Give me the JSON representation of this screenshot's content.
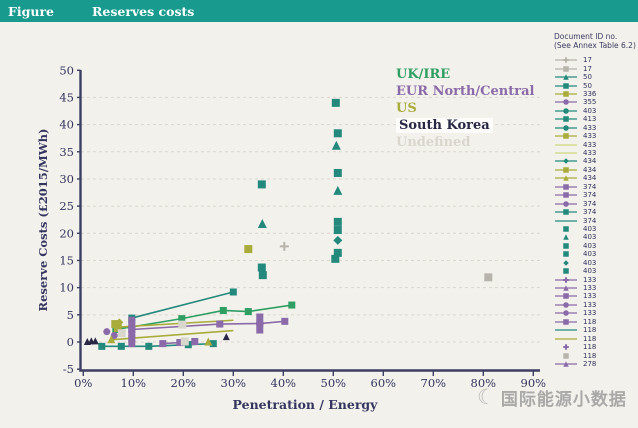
{
  "header": {
    "figure_label": "Figure",
    "title": "Reserves costs"
  },
  "watermark": {
    "icon": "crescent-moon-logo",
    "text": "国际能源小数据"
  },
  "colors": {
    "header_bg": "#189b8e",
    "page_bg": "#f3f1ec",
    "axis": "#3c3e63",
    "tick_text": "#33355e",
    "grid": "#d9d6cb",
    "teal": "#23897c",
    "green": "#2f9e62",
    "olive": "#a9ac3b",
    "light_green": "#cdd97e",
    "purple": "#8a6aa8",
    "gray": "#b6b4ab",
    "light_gray": "#d9d7cd",
    "dark": "#282844"
  },
  "chart_data": {
    "type": "scatter",
    "title": "Reserves costs",
    "xlabel": "Penetration / Energy",
    "ylabel": "Reserve Costs (£2015/MWh)",
    "xlim": [
      0,
      90
    ],
    "ylim": [
      -5,
      50
    ],
    "x_ticks": [
      "0%",
      "10%",
      "20%",
      "30%",
      "40%",
      "50%",
      "60%",
      "70%",
      "80%",
      "90%"
    ],
    "y_ticks": [
      50,
      45,
      40,
      35,
      30,
      25,
      20,
      15,
      10,
      5,
      0,
      -5
    ],
    "grid": "dashed horizontal lines every 5 units from 0 to 45",
    "legend_regions": [
      {
        "label": "UK/IRE",
        "color": "green",
        "highlight": false
      },
      {
        "label": "EUR North/Central",
        "color": "purple",
        "highlight": false
      },
      {
        "label": "US",
        "color": "olive",
        "highlight": false
      },
      {
        "label": "South Korea",
        "color": "dark",
        "highlight": true
      },
      {
        "label": "Undefined",
        "color": "light_gray",
        "highlight": false
      }
    ],
    "doc_legend": {
      "title_line1": "Document ID no.",
      "title_line2": "(See Annex Table 6.2)",
      "entries": [
        {
          "id": "17",
          "color": "gray",
          "marker": "plus",
          "line": true
        },
        {
          "id": "17",
          "color": "gray",
          "marker": "square",
          "line": true
        },
        {
          "id": "50",
          "color": "teal",
          "marker": "triangle",
          "line": true
        },
        {
          "id": "50",
          "color": "teal",
          "marker": "square",
          "line": true
        },
        {
          "id": "336",
          "color": "olive",
          "marker": "square",
          "line": true
        },
        {
          "id": "355",
          "color": "purple",
          "marker": "circle",
          "line": true
        },
        {
          "id": "403",
          "color": "teal",
          "marker": "circle",
          "line": true
        },
        {
          "id": "413",
          "color": "teal",
          "marker": "square",
          "line": true
        },
        {
          "id": "433",
          "color": "teal",
          "marker": "circle",
          "line": true
        },
        {
          "id": "433",
          "color": "olive",
          "marker": "square",
          "line": true
        },
        {
          "id": "433",
          "color": "light_green",
          "marker": "none",
          "line": true
        },
        {
          "id": "433",
          "color": "light_green",
          "marker": "none",
          "line": true
        },
        {
          "id": "434",
          "color": "teal",
          "marker": "diamond",
          "line": true
        },
        {
          "id": "434",
          "color": "olive",
          "marker": "square",
          "line": true
        },
        {
          "id": "434",
          "color": "olive",
          "marker": "triangle",
          "line": true
        },
        {
          "id": "374",
          "color": "purple",
          "marker": "square",
          "line": true
        },
        {
          "id": "374",
          "color": "purple",
          "marker": "square",
          "line": true
        },
        {
          "id": "374",
          "color": "purple",
          "marker": "circle",
          "line": true
        },
        {
          "id": "374",
          "color": "teal",
          "marker": "square",
          "line": true
        },
        {
          "id": "374",
          "color": "teal",
          "marker": "none",
          "line": true
        },
        {
          "id": "403",
          "color": "teal",
          "marker": "square",
          "line": false
        },
        {
          "id": "403",
          "color": "teal",
          "marker": "triangle",
          "line": false
        },
        {
          "id": "403",
          "color": "teal",
          "marker": "square",
          "line": false
        },
        {
          "id": "403",
          "color": "teal",
          "marker": "square",
          "line": false
        },
        {
          "id": "403",
          "color": "teal",
          "marker": "diamond",
          "line": false
        },
        {
          "id": "403",
          "color": "teal",
          "marker": "square",
          "line": false
        },
        {
          "id": "133",
          "color": "purple",
          "marker": "plus",
          "line": true
        },
        {
          "id": "133",
          "color": "purple",
          "marker": "triangle",
          "line": true
        },
        {
          "id": "133",
          "color": "purple",
          "marker": "square",
          "line": true
        },
        {
          "id": "133",
          "color": "purple",
          "marker": "circle",
          "line": true
        },
        {
          "id": "133",
          "color": "purple",
          "marker": "circle",
          "line": true
        },
        {
          "id": "118",
          "color": "purple",
          "marker": "square",
          "line": true
        },
        {
          "id": "118",
          "color": "teal",
          "marker": "none",
          "line": true
        },
        {
          "id": "118",
          "color": "olive",
          "marker": "none",
          "line": true
        },
        {
          "id": "118",
          "color": "purple",
          "marker": "plus",
          "line": false
        },
        {
          "id": "118",
          "color": "gray",
          "marker": "square",
          "line": false
        },
        {
          "id": "278",
          "color": "purple",
          "marker": "triangle",
          "line": true
        }
      ]
    },
    "series": [
      {
        "name": "teal-high-squares",
        "color": "teal",
        "marker": "square",
        "size": 8,
        "line": false,
        "points": [
          [
            50.5,
            44
          ],
          [
            50.9,
            38.4
          ],
          [
            50.9,
            31.1
          ],
          [
            50.9,
            22.1
          ],
          [
            50.9,
            20.6
          ],
          [
            50.9,
            16.4
          ],
          [
            50.4,
            15.3
          ],
          [
            35.7,
            29
          ],
          [
            35.7,
            13.7
          ],
          [
            35.9,
            12.3
          ]
        ]
      },
      {
        "name": "teal-triangles",
        "color": "teal",
        "marker": "triangle",
        "size": 9,
        "line": false,
        "points": [
          [
            50.6,
            36.2
          ],
          [
            50.9,
            27.9
          ],
          [
            35.8,
            21.8
          ]
        ]
      },
      {
        "name": "teal-diamond",
        "color": "teal",
        "marker": "diamond",
        "size": 9,
        "line": false,
        "points": [
          [
            50.9,
            18.7
          ]
        ]
      },
      {
        "name": "teal-steep-line",
        "color": "teal",
        "marker": "square",
        "size": 7,
        "line": true,
        "points": [
          [
            9.7,
            4.4
          ],
          [
            30,
            9.2
          ]
        ]
      },
      {
        "name": "green-rising-line",
        "color": "green",
        "marker": "square",
        "size": 7,
        "line": true,
        "points": [
          [
            6.5,
            2.3
          ],
          [
            19.7,
            4.3
          ],
          [
            28,
            5.8
          ],
          [
            33,
            5.6
          ],
          [
            41.7,
            6.8
          ]
        ]
      },
      {
        "name": "teal-bottom-line",
        "color": "teal",
        "marker": "square",
        "size": 7,
        "line": true,
        "points": [
          [
            3.7,
            -0.8
          ],
          [
            7.6,
            -0.8
          ],
          [
            13.1,
            -0.8
          ],
          [
            21,
            -0.5
          ],
          [
            26,
            -0.3
          ]
        ]
      },
      {
        "name": "purple-main-line",
        "color": "purple",
        "marker": "square",
        "size": 7,
        "line": true,
        "points": [
          [
            9.7,
            2.3
          ],
          [
            27.3,
            3.3
          ],
          [
            35.3,
            3.4
          ],
          [
            40.3,
            3.8
          ]
        ]
      },
      {
        "name": "purple-error-bar",
        "color": "purple",
        "marker": "square",
        "size": 7,
        "line": true,
        "points": [
          [
            35.3,
            4.6
          ],
          [
            35.3,
            2.2
          ]
        ]
      },
      {
        "name": "purple-circle-35pct",
        "color": "purple",
        "marker": "circle",
        "size": 8,
        "line": false,
        "points": [
          [
            35.3,
            3.4
          ]
        ]
      },
      {
        "name": "purple-stack-10pct",
        "color": "purple",
        "marker": "square",
        "size": 7,
        "line": true,
        "points": [
          [
            9.7,
            4.0
          ],
          [
            9.7,
            3.2
          ],
          [
            9.7,
            2.4
          ],
          [
            9.7,
            1.5
          ],
          [
            9.7,
            0.6
          ],
          [
            9.7,
            -0.3
          ]
        ]
      },
      {
        "name": "purple-bottom-line",
        "color": "purple",
        "marker": "square",
        "size": 7,
        "line": true,
        "points": [
          [
            15.9,
            -0.3
          ],
          [
            19.3,
            -0.1
          ],
          [
            22.3,
            0.1
          ]
        ]
      },
      {
        "name": "purple-circles",
        "color": "purple",
        "marker": "circle",
        "size": 7,
        "line": false,
        "points": [
          [
            4.7,
            1.9
          ],
          [
            6.2,
            1.2
          ]
        ]
      },
      {
        "name": "olive-line-low",
        "color": "olive",
        "marker": "none",
        "size": 0,
        "line": true,
        "points": [
          [
            5.5,
            0.4
          ],
          [
            30,
            2.1
          ]
        ]
      },
      {
        "name": "olive-line-mid",
        "color": "olive",
        "marker": "none",
        "size": 0,
        "line": true,
        "points": [
          [
            6.3,
            2.7
          ],
          [
            30,
            4.0
          ]
        ]
      },
      {
        "name": "olive-squares",
        "color": "olive",
        "marker": "square",
        "size": 8,
        "line": false,
        "points": [
          [
            33,
            17.1
          ],
          [
            6.4,
            3.3
          ],
          [
            6.9,
            2.6
          ]
        ]
      },
      {
        "name": "olive-diamond",
        "color": "olive",
        "marker": "diamond",
        "size": 8,
        "line": false,
        "points": [
          [
            7.2,
            3.6
          ]
        ]
      },
      {
        "name": "olive-triangles",
        "color": "olive",
        "marker": "triangle",
        "size": 8,
        "line": false,
        "points": [
          [
            25,
            0.1
          ],
          [
            5.6,
            0.5
          ]
        ]
      },
      {
        "name": "dark-triangles",
        "color": "dark",
        "marker": "triangle",
        "size": 7,
        "line": false,
        "points": [
          [
            0.8,
            0.1
          ],
          [
            1.6,
            0.2
          ],
          [
            2.4,
            0.2
          ],
          [
            28.6,
            1.0
          ]
        ]
      },
      {
        "name": "gray-plus",
        "color": "gray",
        "marker": "plus",
        "size": 9,
        "line": false,
        "points": [
          [
            40.2,
            17.6
          ]
        ]
      },
      {
        "name": "gray-square-80pct",
        "color": "gray",
        "marker": "square",
        "size": 8,
        "line": false,
        "points": [
          [
            81,
            11.9
          ]
        ]
      },
      {
        "name": "light-gray-squares",
        "color": "light_gray",
        "marker": "square",
        "size": 8,
        "line": false,
        "points": [
          [
            7.7,
            1.6
          ],
          [
            19.8,
            3.2
          ],
          [
            20.3,
            0.1
          ]
        ]
      }
    ]
  }
}
